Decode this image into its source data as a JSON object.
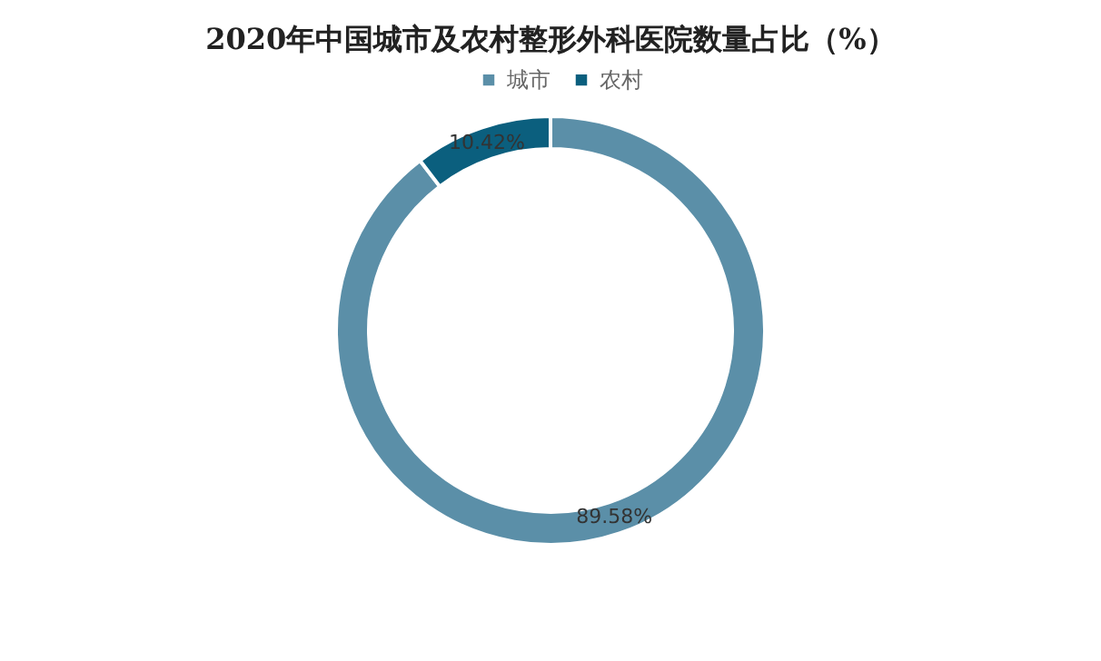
{
  "chart_data": {
    "type": "donut",
    "title": "2020年中国城市及农村整形外科医院数量占比（%）",
    "categories": [
      "城市",
      "农村"
    ],
    "values": [
      89.58,
      10.42
    ],
    "colors": [
      "#5b8fa8",
      "#0b5f7e"
    ],
    "value_labels": [
      "89.58%",
      "10.42%"
    ],
    "legend": "top"
  }
}
